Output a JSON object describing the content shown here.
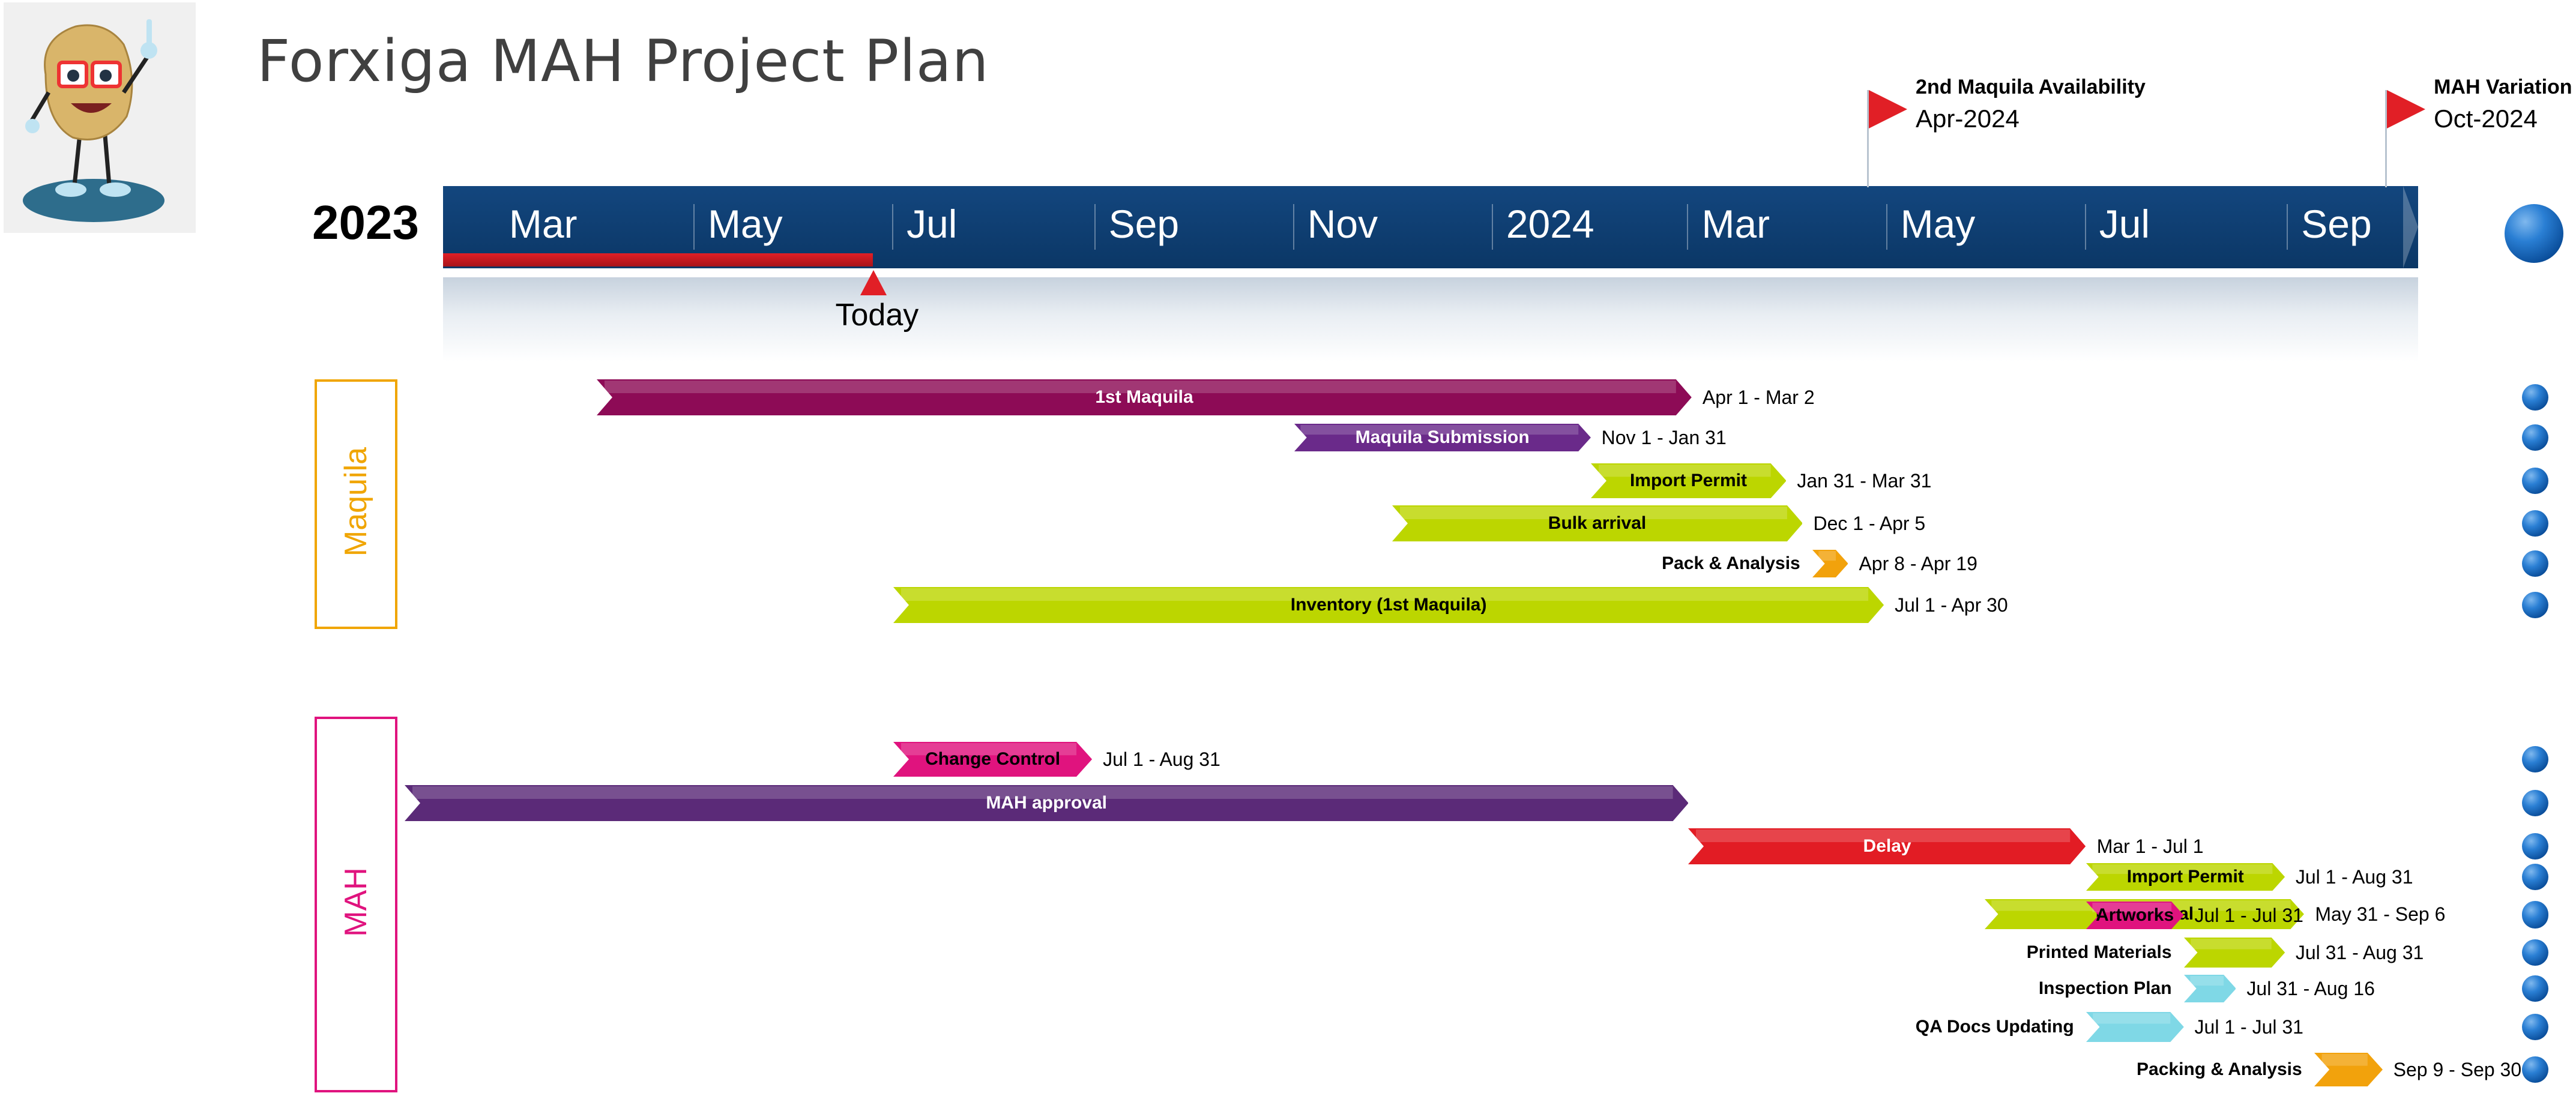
{
  "page": {
    "title": "Forxiga MAH Project Plan"
  },
  "timeline": {
    "year_label": "2023",
    "ticks": [
      "Mar",
      "May",
      "Jul",
      "Sep",
      "Nov",
      "2024",
      "Mar",
      "May",
      "Jul",
      "Sep"
    ],
    "today_label": "Today",
    "today_value": "2023-06-25",
    "colors": {
      "band": "#0b3766",
      "progress": "#e11f26"
    }
  },
  "milestones": [
    {
      "title": "2nd Maquila Availability",
      "date": "Apr-2024",
      "value": "2024-04-25"
    },
    {
      "title": "MAH Variation",
      "date": "Oct-2024",
      "value": "2024-10-01"
    }
  ],
  "groups": [
    {
      "label": "Maquila",
      "color": "#f0a500"
    },
    {
      "label": "MAH",
      "color": "#e0137e"
    }
  ],
  "tasks": [
    {
      "group": 0,
      "label": "1st Maquila",
      "dates": "Apr 1 - Mar 2",
      "start": "2023-04-01",
      "end": "2024-03-02",
      "color": "#8d0b56",
      "text_color": "#ffffff",
      "label_inside": true
    },
    {
      "group": 0,
      "label": "Maquila Submission",
      "dates": "Nov 1 - Jan 31",
      "start": "2023-11-01",
      "end": "2024-01-31",
      "color": "#6a2a8a",
      "text_color": "#ffffff",
      "label_inside": true
    },
    {
      "group": 0,
      "label": "Import Permit",
      "dates": "Jan 31 - Mar 31",
      "start": "2024-01-31",
      "end": "2024-03-31",
      "color": "#bcd600",
      "text_color": "#000000",
      "label_inside": true
    },
    {
      "group": 0,
      "label": "Bulk arrival",
      "dates": "Dec 1 - Apr 5",
      "start": "2023-12-01",
      "end": "2024-04-05",
      "color": "#bcd600",
      "text_color": "#000000",
      "label_inside": true
    },
    {
      "group": 0,
      "label": "Pack & Analysis",
      "dates": "Apr 8 - Apr 19",
      "start": "2024-04-08",
      "end": "2024-04-19",
      "color": "#f2a20c",
      "text_color": "#000000",
      "label_inside": false
    },
    {
      "group": 0,
      "label": "Inventory (1st Maquila)",
      "dates": "Jul 1 - Apr 30",
      "start": "2023-07-01",
      "end": "2024-04-30",
      "color": "#bcd600",
      "text_color": "#000000",
      "label_inside": true
    },
    {
      "group": 1,
      "label": "Change Control",
      "dates": "Jul 1 - Aug 31",
      "start": "2023-07-01",
      "end": "2023-08-31",
      "color": "#e0137e",
      "text_color": "#000000",
      "label_inside": true
    },
    {
      "group": 1,
      "label": "MAH approval",
      "dates": "",
      "start": "2023-02-01",
      "end": "2024-03-01",
      "color": "#5b2a78",
      "text_color": "#ffffff",
      "label_inside": true
    },
    {
      "group": 1,
      "label": "Delay",
      "dates": "Mar 1 - Jul 1",
      "start": "2024-03-01",
      "end": "2024-07-01",
      "color": "#e21c24",
      "text_color": "#ffffff",
      "label_inside": true
    },
    {
      "group": 1,
      "label": "Import Permit",
      "dates": "Jul 1 - Aug 31",
      "start": "2024-07-01",
      "end": "2024-08-31",
      "color": "#bcd600",
      "text_color": "#000000",
      "label_inside": true
    },
    {
      "group": 1,
      "label": "Bulk arrival",
      "dates": "May 31 - Sep 6",
      "start": "2024-05-31",
      "end": "2024-09-06",
      "color": "#bcd600",
      "text_color": "#000000",
      "label_inside": true
    },
    {
      "group": 1,
      "label": "Artworks",
      "dates": "Jul 1 - Jul 31",
      "start": "2024-07-01",
      "end": "2024-07-31",
      "color": "#e0137e",
      "text_color": "#000000",
      "label_inside": true
    },
    {
      "group": 1,
      "label": "Printed Materials",
      "dates": "Jul 31 - Aug 31",
      "start": "2024-07-31",
      "end": "2024-08-31",
      "color": "#bcd600",
      "text_color": "#000000",
      "label_inside": false
    },
    {
      "group": 1,
      "label": "Inspection Plan",
      "dates": "Jul 31 - Aug 16",
      "start": "2024-07-31",
      "end": "2024-08-16",
      "color": "#7fd8e6",
      "text_color": "#000000",
      "label_inside": false
    },
    {
      "group": 1,
      "label": "QA Docs Updating",
      "dates": "Jul 1 - Jul 31",
      "start": "2024-07-01",
      "end": "2024-07-31",
      "color": "#7fd8e6",
      "text_color": "#000000",
      "label_inside": false
    },
    {
      "group": 1,
      "label": "Packing & Analysis",
      "dates": "Sep 9 - Sep 30",
      "start": "2024-09-09",
      "end": "2024-09-30",
      "color": "#f2a20c",
      "text_color": "#000000",
      "label_inside": false
    }
  ],
  "icons": {
    "mascot": "mascot-pointing-icon",
    "dot": "blue-sphere-icon",
    "flag": "red-flag-icon"
  }
}
